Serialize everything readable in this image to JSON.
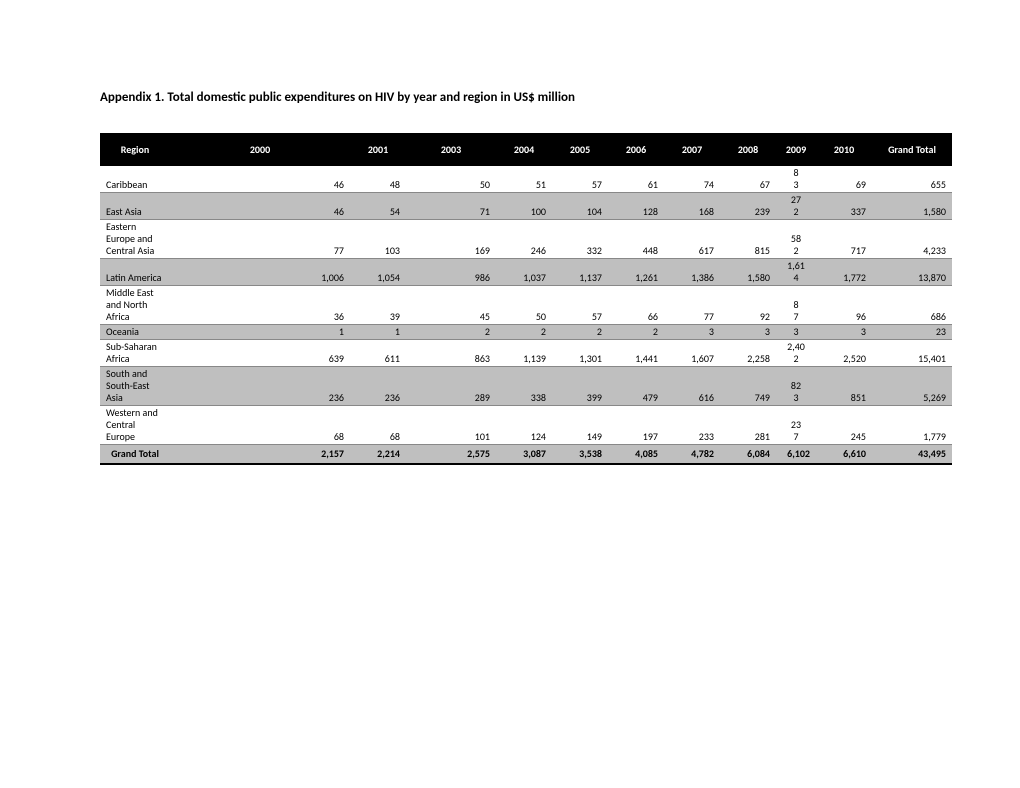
{
  "title": "Appendix 1. Total domestic public expenditures on HIV by year and region in US$ million",
  "table": {
    "type": "table",
    "header_bg": "#000000",
    "header_fg": "#ffffff",
    "shaded_bg": "#bfbfbf",
    "border_color": "#888888",
    "font_family": "Calibri, Arial, sans-serif",
    "title_fontsize": 13,
    "cell_fontsize": 10,
    "columns": {
      "region": "Region",
      "y2000": "2000",
      "y2001": "2001",
      "y2003": "2003",
      "y2004": "2004",
      "y2005": "2005",
      "y2006": "2006",
      "y2007": "2007",
      "y2008": "2008",
      "y2009": "2009",
      "y2010": "2010",
      "total": "Grand Total"
    },
    "rows": [
      {
        "region": "Caribbean",
        "y2000": "46",
        "y2001": "48",
        "y2003": "50",
        "y2004": "51",
        "y2005": "57",
        "y2006": "61",
        "y2007": "74",
        "y2008": "67",
        "y2009": "83",
        "y2010": "69",
        "total": "655",
        "shaded": false
      },
      {
        "region": "East Asia",
        "y2000": "46",
        "y2001": "54",
        "y2003": "71",
        "y2004": "100",
        "y2005": "104",
        "y2006": "128",
        "y2007": "168",
        "y2008": "239",
        "y2009": "272",
        "y2010": "337",
        "total": "1,580",
        "shaded": true
      },
      {
        "region": "Eastern Europe and Central Asia",
        "y2000": "77",
        "y2001": "103",
        "y2003": "169",
        "y2004": "246",
        "y2005": "332",
        "y2006": "448",
        "y2007": "617",
        "y2008": "815",
        "y2009": "582",
        "y2010": "717",
        "total": "4,233",
        "shaded": false
      },
      {
        "region": "Latin America",
        "y2000": "1,006",
        "y2001": "1,054",
        "y2003": "986",
        "y2004": "1,037",
        "y2005": "1,137",
        "y2006": "1,261",
        "y2007": "1,386",
        "y2008": "1,580",
        "y2009": "1,614",
        "y2010": "1,772",
        "total": "13,870",
        "shaded": true
      },
      {
        "region": "Middle East and North Africa",
        "y2000": "36",
        "y2001": "39",
        "y2003": "45",
        "y2004": "50",
        "y2005": "57",
        "y2006": "66",
        "y2007": "77",
        "y2008": "92",
        "y2009": "87",
        "y2010": "96",
        "total": "686",
        "shaded": false
      },
      {
        "region": "Oceania",
        "y2000": "1",
        "y2001": "1",
        "y2003": "2",
        "y2004": "2",
        "y2005": "2",
        "y2006": "2",
        "y2007": "3",
        "y2008": "3",
        "y2009": "3",
        "y2010": "3",
        "total": "23",
        "shaded": true
      },
      {
        "region": "Sub-Saharan Africa",
        "y2000": "639",
        "y2001": "611",
        "y2003": "863",
        "y2004": "1,139",
        "y2005": "1,301",
        "y2006": "1,441",
        "y2007": "1,607",
        "y2008": "2,258",
        "y2009": "2,402",
        "y2010": "2,520",
        "total": "15,401",
        "shaded": false
      },
      {
        "region": "South and South-East Asia",
        "y2000": "236",
        "y2001": "236",
        "y2003": "289",
        "y2004": "338",
        "y2005": "399",
        "y2006": "479",
        "y2007": "616",
        "y2008": "749",
        "y2009": "823",
        "y2010": "851",
        "total": "5,269",
        "shaded": true
      },
      {
        "region": "Western and Central Europe",
        "y2000": "68",
        "y2001": "68",
        "y2003": "101",
        "y2004": "124",
        "y2005": "149",
        "y2006": "197",
        "y2007": "233",
        "y2008": "281",
        "y2009": "237",
        "y2010": "245",
        "total": "1,779",
        "shaded": false
      }
    ],
    "grand_total": {
      "region": "Grand Total",
      "y2000": "2,157",
      "y2001": "2,214",
      "y2003": "2,575",
      "y2004": "3,087",
      "y2005": "3,538",
      "y2006": "4,085",
      "y2007": "4,782",
      "y2008": "6,084",
      "y2009": "6,102",
      "y2010": "6,610",
      "total": "43,495"
    }
  }
}
